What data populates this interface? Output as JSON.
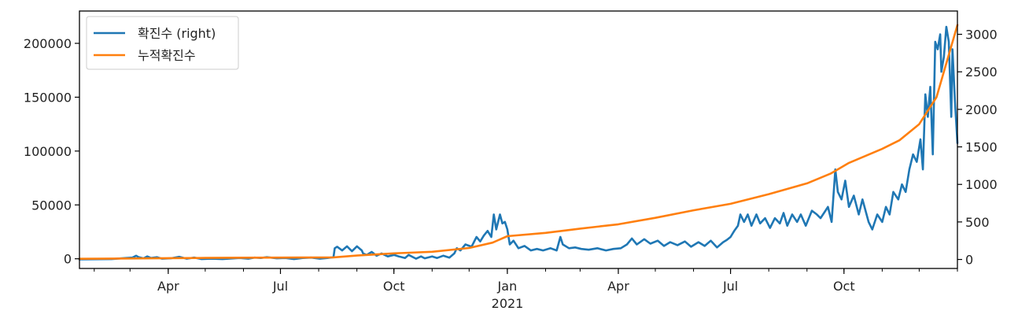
{
  "chart_data": {
    "type": "line",
    "title": "",
    "xlabel": "",
    "x_range": [
      "2020-01-20",
      "2022-01-01"
    ],
    "x_ticks": [
      {
        "date": "2020-04-01",
        "label": "Apr"
      },
      {
        "date": "2020-07-01",
        "label": "Jul"
      },
      {
        "date": "2020-10-01",
        "label": "Oct"
      },
      {
        "date": "2021-01-01",
        "label": "Jan"
      },
      {
        "date": "2021-04-01",
        "label": "Apr"
      },
      {
        "date": "2021-07-01",
        "label": "Jul"
      },
      {
        "date": "2021-10-01",
        "label": "Oct"
      }
    ],
    "x_year_label": "2021",
    "left_axis": {
      "ylim": [
        -9000,
        230000
      ],
      "ticks": [
        0,
        50000,
        100000,
        150000,
        200000
      ]
    },
    "right_axis": {
      "ylim": [
        -120,
        3310
      ],
      "ticks": [
        0,
        500,
        1000,
        1500,
        2000,
        2500,
        3000
      ]
    },
    "legend": {
      "placement": "top-left",
      "entries": [
        "확진수 (right)",
        "누적확진수"
      ]
    },
    "series": [
      {
        "name": "확진수 (right)",
        "axis": "right",
        "color": "#1f77b4",
        "points": [
          [
            "2020-01-20",
            2
          ],
          [
            "2020-02-15",
            5
          ],
          [
            "2020-02-27",
            20
          ],
          [
            "2020-03-03",
            25
          ],
          [
            "2020-03-06",
            50
          ],
          [
            "2020-03-08",
            30
          ],
          [
            "2020-03-12",
            15
          ],
          [
            "2020-03-15",
            40
          ],
          [
            "2020-03-18",
            20
          ],
          [
            "2020-03-23",
            30
          ],
          [
            "2020-03-27",
            10
          ],
          [
            "2020-04-03",
            15
          ],
          [
            "2020-04-10",
            35
          ],
          [
            "2020-04-16",
            10
          ],
          [
            "2020-04-22",
            25
          ],
          [
            "2020-04-28",
            5
          ],
          [
            "2020-05-06",
            10
          ],
          [
            "2020-05-15",
            5
          ],
          [
            "2020-05-25",
            15
          ],
          [
            "2020-05-29",
            20
          ],
          [
            "2020-06-05",
            10
          ],
          [
            "2020-06-10",
            25
          ],
          [
            "2020-06-15",
            20
          ],
          [
            "2020-06-20",
            30
          ],
          [
            "2020-06-28",
            15
          ],
          [
            "2020-07-05",
            20
          ],
          [
            "2020-07-12",
            5
          ],
          [
            "2020-07-19",
            20
          ],
          [
            "2020-07-26",
            25
          ],
          [
            "2020-08-02",
            10
          ],
          [
            "2020-08-08",
            20
          ],
          [
            "2020-08-13",
            30
          ],
          [
            "2020-08-14",
            150
          ],
          [
            "2020-08-16",
            170
          ],
          [
            "2020-08-20",
            120
          ],
          [
            "2020-08-24",
            175
          ],
          [
            "2020-08-28",
            110
          ],
          [
            "2020-09-01",
            175
          ],
          [
            "2020-09-05",
            120
          ],
          [
            "2020-09-06",
            80
          ],
          [
            "2020-09-09",
            60
          ],
          [
            "2020-09-13",
            100
          ],
          [
            "2020-09-17",
            50
          ],
          [
            "2020-09-21",
            80
          ],
          [
            "2020-09-26",
            40
          ],
          [
            "2020-10-01",
            60
          ],
          [
            "2020-10-05",
            40
          ],
          [
            "2020-10-10",
            20
          ],
          [
            "2020-10-13",
            60
          ],
          [
            "2020-10-19",
            10
          ],
          [
            "2020-10-23",
            40
          ],
          [
            "2020-10-26",
            15
          ],
          [
            "2020-11-01",
            40
          ],
          [
            "2020-11-05",
            20
          ],
          [
            "2020-11-10",
            50
          ],
          [
            "2020-11-15",
            25
          ],
          [
            "2020-11-19",
            80
          ],
          [
            "2020-11-21",
            150
          ],
          [
            "2020-11-24",
            120
          ],
          [
            "2020-11-28",
            200
          ],
          [
            "2020-12-03",
            170
          ],
          [
            "2020-12-07",
            300
          ],
          [
            "2020-12-10",
            240
          ],
          [
            "2020-12-13",
            320
          ],
          [
            "2020-12-16",
            380
          ],
          [
            "2020-12-19",
            300
          ],
          [
            "2020-12-21",
            600
          ],
          [
            "2020-12-23",
            400
          ],
          [
            "2020-12-26",
            600
          ],
          [
            "2020-12-28",
            480
          ],
          [
            "2020-12-30",
            500
          ],
          [
            "2021-01-01",
            400
          ],
          [
            "2021-01-03",
            200
          ],
          [
            "2021-01-06",
            250
          ],
          [
            "2021-01-10",
            150
          ],
          [
            "2021-01-15",
            180
          ],
          [
            "2021-01-20",
            120
          ],
          [
            "2021-01-25",
            140
          ],
          [
            "2021-01-30",
            120
          ],
          [
            "2021-02-05",
            150
          ],
          [
            "2021-02-10",
            120
          ],
          [
            "2021-02-13",
            300
          ],
          [
            "2021-02-15",
            200
          ],
          [
            "2021-02-20",
            150
          ],
          [
            "2021-02-25",
            160
          ],
          [
            "2021-03-02",
            140
          ],
          [
            "2021-03-08",
            130
          ],
          [
            "2021-03-15",
            150
          ],
          [
            "2021-03-22",
            120
          ],
          [
            "2021-03-28",
            140
          ],
          [
            "2021-04-03",
            150
          ],
          [
            "2021-04-08",
            200
          ],
          [
            "2021-04-12",
            280
          ],
          [
            "2021-04-16",
            200
          ],
          [
            "2021-04-22",
            270
          ],
          [
            "2021-04-27",
            210
          ],
          [
            "2021-05-03",
            250
          ],
          [
            "2021-05-08",
            180
          ],
          [
            "2021-05-13",
            230
          ],
          [
            "2021-05-19",
            190
          ],
          [
            "2021-05-25",
            240
          ],
          [
            "2021-05-30",
            170
          ],
          [
            "2021-06-05",
            230
          ],
          [
            "2021-06-10",
            180
          ],
          [
            "2021-06-15",
            250
          ],
          [
            "2021-06-20",
            160
          ],
          [
            "2021-06-25",
            230
          ],
          [
            "2021-06-28",
            260
          ],
          [
            "2021-07-01",
            300
          ],
          [
            "2021-07-04",
            380
          ],
          [
            "2021-07-07",
            450
          ],
          [
            "2021-07-09",
            600
          ],
          [
            "2021-07-12",
            500
          ],
          [
            "2021-07-15",
            600
          ],
          [
            "2021-07-18",
            450
          ],
          [
            "2021-07-22",
            600
          ],
          [
            "2021-07-25",
            480
          ],
          [
            "2021-07-29",
            550
          ],
          [
            "2021-08-02",
            420
          ],
          [
            "2021-08-06",
            550
          ],
          [
            "2021-08-10",
            480
          ],
          [
            "2021-08-13",
            620
          ],
          [
            "2021-08-16",
            450
          ],
          [
            "2021-08-20",
            600
          ],
          [
            "2021-08-24",
            500
          ],
          [
            "2021-08-27",
            600
          ],
          [
            "2021-08-31",
            450
          ],
          [
            "2021-09-05",
            650
          ],
          [
            "2021-09-09",
            600
          ],
          [
            "2021-09-12",
            550
          ],
          [
            "2021-09-16",
            650
          ],
          [
            "2021-09-18",
            700
          ],
          [
            "2021-09-21",
            500
          ],
          [
            "2021-09-24",
            1200
          ],
          [
            "2021-09-26",
            900
          ],
          [
            "2021-09-29",
            800
          ],
          [
            "2021-10-02",
            1050
          ],
          [
            "2021-10-05",
            700
          ],
          [
            "2021-10-09",
            850
          ],
          [
            "2021-10-13",
            600
          ],
          [
            "2021-10-16",
            800
          ],
          [
            "2021-10-21",
            500
          ],
          [
            "2021-10-24",
            400
          ],
          [
            "2021-10-28",
            600
          ],
          [
            "2021-11-01",
            500
          ],
          [
            "2021-11-04",
            700
          ],
          [
            "2021-11-07",
            600
          ],
          [
            "2021-11-10",
            900
          ],
          [
            "2021-11-14",
            800
          ],
          [
            "2021-11-17",
            1000
          ],
          [
            "2021-11-20",
            900
          ],
          [
            "2021-11-23",
            1200
          ],
          [
            "2021-11-26",
            1400
          ],
          [
            "2021-11-29",
            1300
          ],
          [
            "2021-12-02",
            1600
          ],
          [
            "2021-12-04",
            1200
          ],
          [
            "2021-12-06",
            2200
          ],
          [
            "2021-12-08",
            1900
          ],
          [
            "2021-12-10",
            2300
          ],
          [
            "2021-12-12",
            1400
          ],
          [
            "2021-12-14",
            2900
          ],
          [
            "2021-12-16",
            2800
          ],
          [
            "2021-12-18",
            3000
          ],
          [
            "2021-12-19",
            2500
          ],
          [
            "2021-12-21",
            2700
          ],
          [
            "2021-12-23",
            3100
          ],
          [
            "2021-12-25",
            2900
          ],
          [
            "2021-12-27",
            1900
          ],
          [
            "2021-12-28",
            2800
          ],
          [
            "2021-12-30",
            2100
          ],
          [
            "2022-01-01",
            1550
          ]
        ]
      },
      {
        "name": "누적확진수",
        "axis": "left",
        "color": "#ff7f0e",
        "points": [
          [
            "2020-01-20",
            0
          ],
          [
            "2020-03-01",
            300
          ],
          [
            "2020-04-01",
            600
          ],
          [
            "2020-05-01",
            800
          ],
          [
            "2020-06-01",
            1000
          ],
          [
            "2020-07-01",
            1100
          ],
          [
            "2020-08-13",
            1300
          ],
          [
            "2020-09-01",
            3000
          ],
          [
            "2020-10-01",
            5000
          ],
          [
            "2020-11-01",
            6500
          ],
          [
            "2020-12-01",
            10000
          ],
          [
            "2020-12-20",
            15000
          ],
          [
            "2021-01-01",
            21000
          ],
          [
            "2021-02-01",
            24000
          ],
          [
            "2021-03-01",
            28000
          ],
          [
            "2021-04-01",
            32000
          ],
          [
            "2021-05-01",
            38000
          ],
          [
            "2021-06-01",
            45000
          ],
          [
            "2021-07-01",
            51000
          ],
          [
            "2021-08-01",
            60000
          ],
          [
            "2021-09-01",
            70000
          ],
          [
            "2021-09-20",
            79000
          ],
          [
            "2021-10-05",
            89000
          ],
          [
            "2021-11-01",
            102000
          ],
          [
            "2021-11-15",
            110000
          ],
          [
            "2021-12-01",
            125000
          ],
          [
            "2021-12-15",
            150000
          ],
          [
            "2022-01-01",
            217000
          ]
        ]
      }
    ]
  }
}
